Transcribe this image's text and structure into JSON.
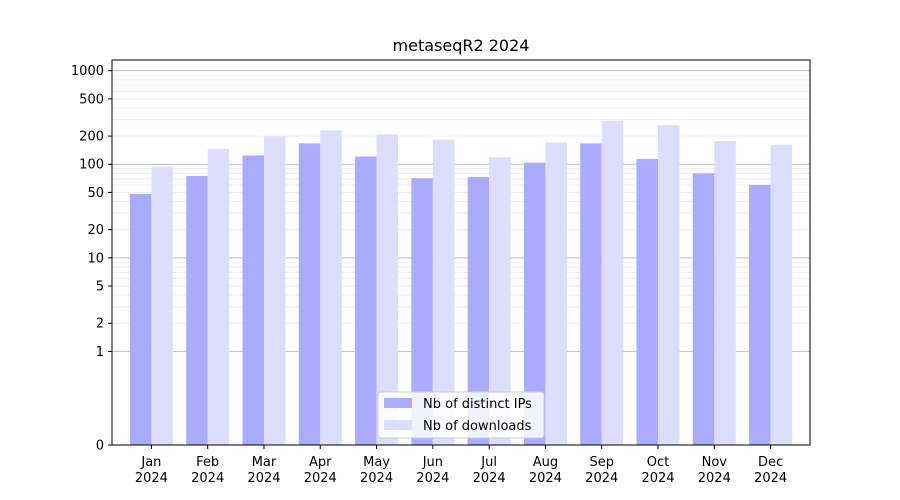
{
  "chart_data": {
    "type": "bar",
    "title": "metaseqR2 2024",
    "y_scale": "symlog",
    "ylim": [
      0,
      1300
    ],
    "y_ticks": [
      {
        "value": 0,
        "label": "0"
      },
      {
        "value": 1,
        "label": "1"
      },
      {
        "value": 2,
        "label": "2"
      },
      {
        "value": 5,
        "label": "5"
      },
      {
        "value": 10,
        "label": "10"
      },
      {
        "value": 20,
        "label": "20"
      },
      {
        "value": 50,
        "label": "50"
      },
      {
        "value": 100,
        "label": "100"
      },
      {
        "value": 200,
        "label": "200"
      },
      {
        "value": 500,
        "label": "500"
      },
      {
        "value": 1000,
        "label": "1000"
      }
    ],
    "categories": [
      {
        "month": "Jan",
        "year": "2024"
      },
      {
        "month": "Feb",
        "year": "2024"
      },
      {
        "month": "Mar",
        "year": "2024"
      },
      {
        "month": "Apr",
        "year": "2024"
      },
      {
        "month": "May",
        "year": "2024"
      },
      {
        "month": "Jun",
        "year": "2024"
      },
      {
        "month": "Jul",
        "year": "2024"
      },
      {
        "month": "Aug",
        "year": "2024"
      },
      {
        "month": "Sep",
        "year": "2024"
      },
      {
        "month": "Oct",
        "year": "2024"
      },
      {
        "month": "Nov",
        "year": "2024"
      },
      {
        "month": "Dec",
        "year": "2024"
      }
    ],
    "series": [
      {
        "name": "Nb of distinct IPs",
        "color": "#aaaaff",
        "values": [
          48,
          75,
          124,
          167,
          121,
          71,
          73,
          104,
          167,
          114,
          80,
          60
        ]
      },
      {
        "name": "Nb of downloads",
        "color": "#ddddff",
        "values": [
          93,
          146,
          199,
          230,
          209,
          183,
          119,
          171,
          291,
          261,
          177,
          161
        ]
      }
    ],
    "legend_position": "bottom-center",
    "grid": "y-major-and-minor"
  }
}
